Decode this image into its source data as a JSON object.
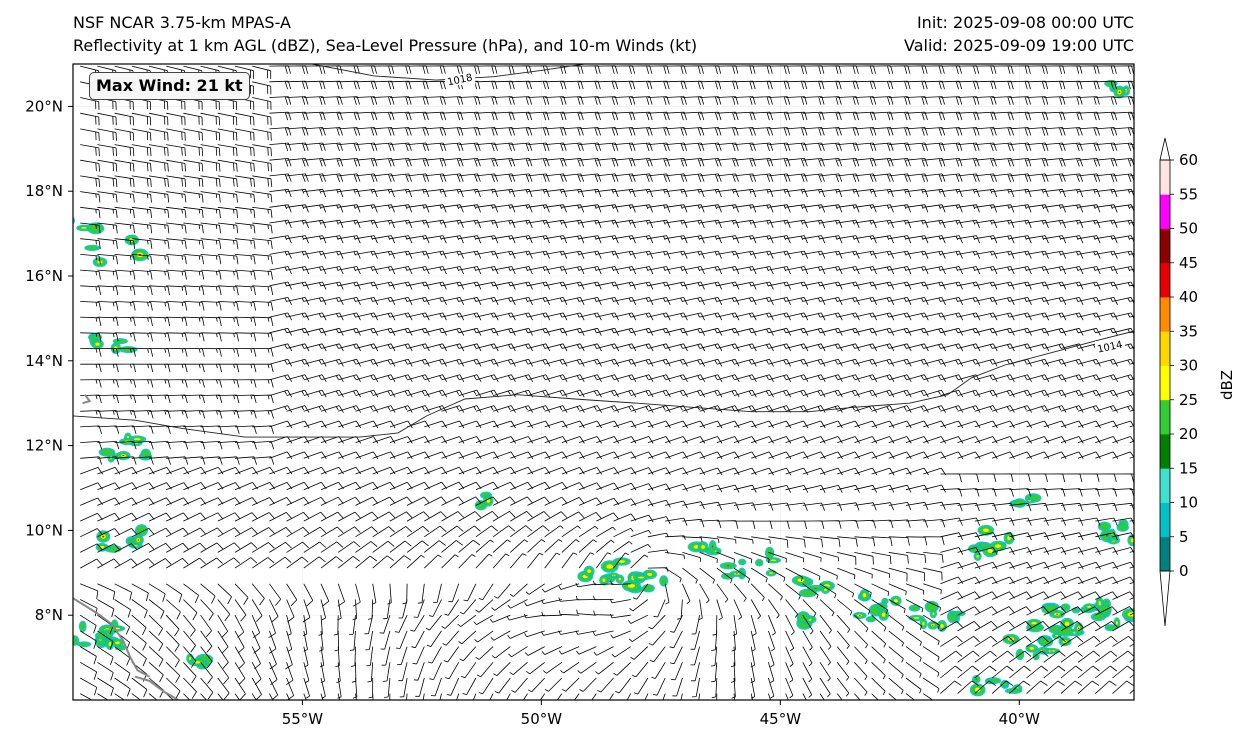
{
  "header": {
    "model": "NSF NCAR 3.75-km MPAS-A",
    "fields": "Reflectivity at 1 km AGL (dBZ), Sea-Level Pressure (hPa), and 10-m Winds (kt)",
    "init": "Init: 2025-09-08 00:00 UTC",
    "valid": "Valid: 2025-09-09 19:00 UTC"
  },
  "badge": {
    "text": "Max Wind: 21 kt"
  },
  "map": {
    "lon_range": [
      -59.8,
      -37.6
    ],
    "lat_range": [
      6.0,
      21.0
    ],
    "lon_ticks": [
      {
        "value": -55,
        "label": "55°W"
      },
      {
        "value": -50,
        "label": "50°W"
      },
      {
        "value": -45,
        "label": "45°W"
      },
      {
        "value": -40,
        "label": "40°W"
      }
    ],
    "lat_ticks": [
      {
        "value": 8,
        "label": "8°N"
      },
      {
        "value": 10,
        "label": "10°N"
      },
      {
        "value": 12,
        "label": "12°N"
      },
      {
        "value": 14,
        "label": "14°N"
      },
      {
        "value": 16,
        "label": "16°N"
      },
      {
        "value": 18,
        "label": "18°N"
      },
      {
        "value": 20,
        "label": "20°N"
      }
    ],
    "isobars": [
      {
        "label": "1018",
        "label_lon": -51.7,
        "label_lat": 20.6,
        "points": [
          [
            -54.8,
            21.0
          ],
          [
            -53.5,
            20.72
          ],
          [
            -52.2,
            20.62
          ],
          [
            -51.0,
            20.7
          ],
          [
            -50.0,
            20.85
          ],
          [
            -49.1,
            21.0
          ]
        ]
      },
      {
        "label": "1014",
        "label_lon": -38.1,
        "label_lat": 14.3,
        "points": [
          [
            -59.8,
            12.7
          ],
          [
            -58.5,
            12.6
          ],
          [
            -57.5,
            12.4
          ],
          [
            -56.2,
            12.2
          ],
          [
            -55.0,
            12.2
          ],
          [
            -53.8,
            12.2
          ],
          [
            -53.0,
            12.3
          ],
          [
            -52.4,
            12.7
          ],
          [
            -51.6,
            13.1
          ],
          [
            -50.5,
            13.2
          ],
          [
            -49.3,
            13.1
          ],
          [
            -48.0,
            13.0
          ],
          [
            -46.8,
            12.9
          ],
          [
            -45.6,
            12.8
          ],
          [
            -44.4,
            12.8
          ],
          [
            -43.5,
            12.9
          ],
          [
            -42.3,
            13.0
          ],
          [
            -41.5,
            13.2
          ],
          [
            -41.0,
            13.6
          ],
          [
            -40.3,
            13.9
          ],
          [
            -39.3,
            14.2
          ],
          [
            -38.3,
            14.5
          ],
          [
            -37.6,
            14.7
          ]
        ]
      }
    ],
    "coastlines": [
      {
        "points": [
          [
            -59.8,
            8.4
          ],
          [
            -59.3,
            8.05
          ],
          [
            -59.0,
            7.8
          ],
          [
            -58.75,
            7.4
          ],
          [
            -58.6,
            7.0
          ],
          [
            -58.45,
            6.7
          ],
          [
            -58.2,
            6.55
          ]
        ]
      },
      {
        "points": [
          [
            -58.5,
            6.55
          ],
          [
            -58.2,
            6.45
          ],
          [
            -57.9,
            6.2
          ],
          [
            -57.6,
            6.0
          ]
        ]
      },
      {
        "points": [
          [
            -59.55,
            13.2
          ],
          [
            -59.45,
            13.05
          ],
          [
            -59.6,
            13.0
          ]
        ]
      }
    ]
  },
  "colorbar": {
    "label": "dBZ",
    "ticks": [
      "0",
      "5",
      "10",
      "15",
      "20",
      "25",
      "30",
      "35",
      "40",
      "45",
      "50",
      "55",
      "60"
    ],
    "colors": [
      "#008080",
      "#00c0c8",
      "#40e0d0",
      "#008000",
      "#32cd32",
      "#ffff00",
      "#ffd700",
      "#ff8c00",
      "#e60000",
      "#8b0000",
      "#ff00ff",
      "#ffe4e1"
    ]
  }
}
